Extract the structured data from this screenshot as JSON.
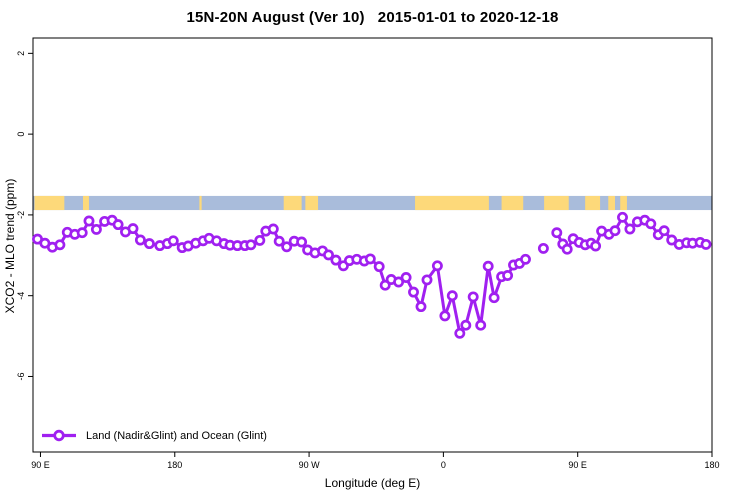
{
  "title": "15N-20N August (Ver 10)   2015-01-01 to 2020-12-18",
  "chart_data": {
    "type": "line",
    "title": "15N-20N August (Ver 10)   2015-01-01 to 2020-12-18",
    "xlabel": "Longitude (deg E)",
    "ylabel": "XCO2 - MLO trend (ppm)",
    "x_axis": {
      "note": "longitude axis wraps eastward: 90E -> 180 -> 90W -> 0 -> 90E -> 180, stored as extended degrees 90..540",
      "range": [
        85,
        540
      ],
      "ticks": [
        {
          "lon": 90,
          "label": "90 E"
        },
        {
          "lon": 180,
          "label": "180"
        },
        {
          "lon": 270,
          "label": "90 W"
        },
        {
          "lon": 360,
          "label": "0"
        },
        {
          "lon": 450,
          "label": "90 E"
        },
        {
          "lon": 540,
          "label": "180"
        }
      ]
    },
    "y_axis": {
      "range": [
        -7.87,
        2.38
      ],
      "ticks": [
        {
          "v": 2,
          "label": "2"
        },
        {
          "v": 0,
          "label": "0"
        },
        {
          "v": -2,
          "label": "-2"
        },
        {
          "v": -4,
          "label": "-4"
        },
        {
          "v": -6,
          "label": "-6"
        }
      ]
    },
    "legend": {
      "label": "Land (Nadir&Glint) and Ocean (Glint)",
      "position": "bottom-left"
    },
    "colors": {
      "series": "#a020f0",
      "marker_fill": "#ffffff",
      "ocean": "#a9bcdb",
      "land": "#fdd97a",
      "axis": "#000000"
    },
    "map_strip": {
      "description": "land/ocean strip for the 15N-20N latitude band drawn across the plot",
      "value_top": -1.53,
      "value_bottom": -1.88,
      "land_segments": [
        [
          86,
          106
        ],
        [
          118.5,
          122.5
        ],
        [
          196.5,
          198
        ],
        [
          253,
          265
        ],
        [
          267.5,
          276
        ],
        [
          341,
          390.5
        ],
        [
          399,
          413.5
        ],
        [
          427.5,
          444
        ],
        [
          455,
          465
        ],
        [
          470.5,
          475
        ],
        [
          478.5,
          483
        ]
      ]
    },
    "series": [
      {
        "name": "Land (Nadir&Glint) and Ocean (Glint)",
        "segments": [
          [
            [
              88,
              -2.6
            ],
            [
              93,
              -2.7
            ],
            [
              98,
              -2.8
            ],
            [
              103,
              -2.74
            ],
            [
              108,
              -2.43
            ],
            [
              113,
              -2.48
            ],
            [
              118,
              -2.44
            ],
            [
              122.5,
              -2.15
            ],
            [
              127.5,
              -2.36
            ],
            [
              133,
              -2.16
            ],
            [
              138,
              -2.13
            ],
            [
              142,
              -2.24
            ],
            [
              147,
              -2.42
            ],
            [
              152,
              -2.34
            ],
            [
              157,
              -2.62
            ],
            [
              163,
              -2.71
            ],
            [
              170,
              -2.76
            ],
            [
              175,
              -2.71
            ],
            [
              179,
              -2.64
            ],
            [
              185,
              -2.81
            ],
            [
              189,
              -2.77
            ],
            [
              194,
              -2.7
            ],
            [
              199,
              -2.64
            ],
            [
              203,
              -2.58
            ],
            [
              208,
              -2.64
            ],
            [
              213,
              -2.71
            ],
            [
              217,
              -2.75
            ],
            [
              222,
              -2.76
            ],
            [
              227,
              -2.76
            ],
            [
              231,
              -2.74
            ],
            [
              237,
              -2.63
            ],
            [
              241,
              -2.4
            ],
            [
              246,
              -2.35
            ],
            [
              250,
              -2.65
            ],
            [
              255,
              -2.79
            ],
            [
              260,
              -2.65
            ],
            [
              265,
              -2.67
            ],
            [
              269,
              -2.87
            ],
            [
              274,
              -2.94
            ],
            [
              279,
              -2.89
            ],
            [
              283,
              -2.99
            ],
            [
              288,
              -3.12
            ],
            [
              293,
              -3.26
            ],
            [
              297,
              -3.13
            ],
            [
              302,
              -3.1
            ],
            [
              307,
              -3.14
            ],
            [
              311,
              -3.09
            ],
            [
              317,
              -3.28
            ],
            [
              321,
              -3.74
            ],
            [
              325,
              -3.6
            ],
            [
              330,
              -3.66
            ],
            [
              335,
              -3.55
            ],
            [
              340,
              -3.91
            ],
            [
              345,
              -4.27
            ],
            [
              349,
              -3.61
            ],
            [
              356,
              -3.26
            ],
            [
              361,
              -4.5
            ],
            [
              366,
              -4.0
            ],
            [
              371,
              -4.93
            ],
            [
              375,
              -4.73
            ],
            [
              380,
              -4.03
            ],
            [
              385,
              -4.73
            ],
            [
              390,
              -3.27
            ],
            [
              394,
              -4.05
            ],
            [
              399,
              -3.53
            ],
            [
              403,
              -3.5
            ],
            [
              407,
              -3.24
            ],
            [
              411,
              -3.2
            ],
            [
              415,
              -3.1
            ]
          ],
          [
            [
              427,
              -2.83
            ]
          ],
          [
            [
              436,
              -2.44
            ],
            [
              440,
              -2.72
            ],
            [
              443,
              -2.85
            ],
            [
              447,
              -2.59
            ],
            [
              451,
              -2.68
            ],
            [
              455,
              -2.74
            ],
            [
              459,
              -2.7
            ],
            [
              462,
              -2.77
            ],
            [
              466,
              -2.4
            ],
            [
              471,
              -2.48
            ],
            [
              475,
              -2.39
            ],
            [
              480,
              -2.06
            ],
            [
              485,
              -2.35
            ],
            [
              490,
              -2.17
            ],
            [
              495,
              -2.13
            ],
            [
              499,
              -2.22
            ],
            [
              504,
              -2.49
            ],
            [
              508,
              -2.39
            ],
            [
              513,
              -2.62
            ],
            [
              518,
              -2.73
            ],
            [
              523,
              -2.69
            ],
            [
              527,
              -2.7
            ],
            [
              532,
              -2.68
            ],
            [
              536,
              -2.73
            ]
          ]
        ]
      }
    ]
  }
}
